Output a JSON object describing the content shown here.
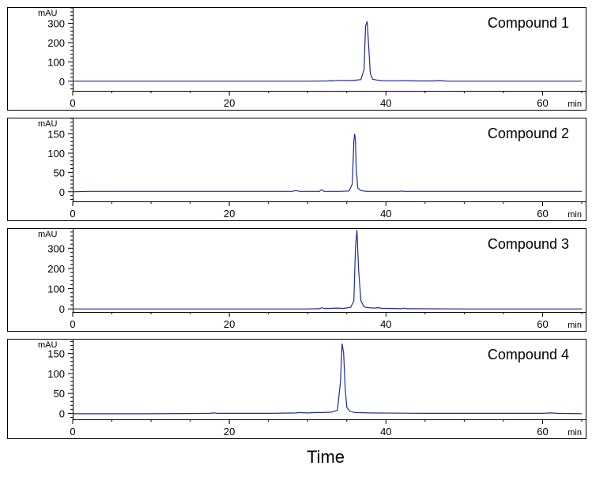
{
  "figure": {
    "xlabel": "Time"
  },
  "colors": {
    "trace": "#1f2a9e",
    "frame": "#000000"
  },
  "chart_data": [
    {
      "type": "line",
      "title": "Compound 1",
      "ylabel": "mAU",
      "xunit": "min",
      "xlim": [
        0,
        65
      ],
      "ylim": [
        -50,
        380
      ],
      "xticks": [
        0,
        20,
        40,
        60
      ],
      "yticks": [
        0,
        100,
        200,
        300
      ],
      "series": [
        {
          "x": [
            0,
            10,
            20,
            30,
            32.5,
            33.0,
            33.5,
            34.0,
            35.0,
            36.0,
            36.8,
            37.2,
            37.4,
            37.6,
            37.8,
            38.0,
            38.3,
            38.8,
            39.5,
            41.0,
            42.0,
            44.0,
            46.0,
            47.0,
            47.4,
            48.0,
            55.0,
            65.0
          ],
          "y": [
            0,
            0,
            0,
            0,
            1,
            3,
            2,
            4,
            3,
            5,
            8,
            60,
            285,
            310,
            180,
            40,
            10,
            6,
            3,
            2,
            3,
            1,
            1,
            3,
            1,
            0,
            0,
            0
          ]
        }
      ]
    },
    {
      "type": "line",
      "title": "Compound 2",
      "ylabel": "mAU",
      "xunit": "min",
      "xlim": [
        0,
        65
      ],
      "ylim": [
        -25,
        190
      ],
      "xticks": [
        0,
        20,
        40,
        60
      ],
      "yticks": [
        0,
        50,
        100,
        150
      ],
      "series": [
        {
          "x": [
            0,
            2,
            10,
            20,
            28.0,
            28.5,
            29.0,
            31.5,
            31.8,
            32.1,
            34.0,
            35.3,
            35.7,
            35.9,
            36.0,
            36.1,
            36.2,
            36.4,
            36.8,
            37.5,
            40.0,
            41.8,
            42.0,
            42.2,
            50.0,
            65.0
          ],
          "y": [
            0,
            1,
            1,
            1,
            1,
            3,
            1,
            1,
            5,
            1,
            1,
            2,
            20,
            130,
            150,
            135,
            60,
            10,
            3,
            1,
            1,
            1,
            2,
            1,
            1,
            1
          ]
        }
      ]
    },
    {
      "type": "line",
      "title": "Compound 3",
      "ylabel": "mAU",
      "xunit": "min",
      "xlim": [
        0,
        65
      ],
      "ylim": [
        -15,
        395
      ],
      "xticks": [
        0,
        20,
        40,
        60
      ],
      "yticks": [
        0,
        100,
        200,
        300
      ],
      "series": [
        {
          "x": [
            0,
            10,
            20,
            30,
            31.5,
            31.8,
            32.2,
            33.0,
            34.0,
            34.5,
            35.0,
            35.5,
            35.9,
            36.1,
            36.3,
            36.5,
            36.8,
            37.2,
            37.8,
            38.5,
            39.0,
            39.5,
            42.0,
            42.3,
            42.6,
            50.0,
            65.0
          ],
          "y": [
            0,
            0,
            0,
            0,
            1,
            6,
            1,
            3,
            4,
            2,
            5,
            8,
            40,
            300,
            390,
            200,
            40,
            10,
            6,
            4,
            6,
            3,
            1,
            4,
            1,
            0,
            0
          ]
        }
      ]
    },
    {
      "type": "line",
      "title": "Compound 4",
      "ylabel": "mAU",
      "xunit": "min",
      "xlim": [
        0,
        65
      ],
      "ylim": [
        -15,
        185
      ],
      "xticks": [
        0,
        20,
        40,
        60
      ],
      "yticks": [
        0,
        50,
        100,
        150
      ],
      "series": [
        {
          "x": [
            0,
            5,
            10,
            17.5,
            18,
            18.5,
            25,
            28.5,
            29.0,
            30.0,
            31.0,
            32.0,
            33.0,
            33.8,
            34.2,
            34.4,
            34.6,
            34.8,
            35.0,
            35.4,
            36.0,
            38.0,
            45.0,
            55.0,
            60.0,
            61.0,
            62.0,
            65.0
          ],
          "y": [
            -1,
            -1,
            -1,
            0,
            1,
            0,
            0,
            1,
            2,
            1,
            2,
            2,
            3,
            8,
            80,
            175,
            150,
            60,
            15,
            5,
            2,
            1,
            0,
            0,
            0,
            1,
            0,
            -1
          ]
        }
      ]
    }
  ]
}
